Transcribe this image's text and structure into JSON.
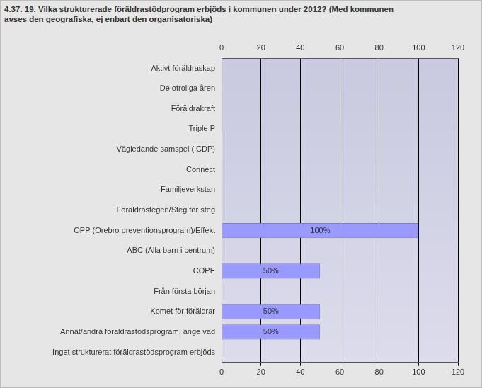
{
  "chart_data": {
    "type": "bar",
    "title": "4.37. 19. Vilka strukturerade föräldrastödprogram erbjöds i kommunen under 2012? (Med kommunen avses den geografiska, ej enbart den organisatoriska)",
    "orientation": "horizontal",
    "categories": [
      "Aktivt föräldraskap",
      "De otroliga åren",
      "Föräldrakraft",
      "Triple P",
      "Vägledande samspel (ICDP)",
      "Connect",
      "Familjeverkstan",
      "Föräldrastegen/Steg för steg",
      "ÖPP (Örebro preventionsprogram)/Effekt",
      "ABC (Alla barn i centrum)",
      "COPE",
      "Från första början",
      "Komet för föräldrar",
      "Annat/andra föräldrastödsprogram, ange vad",
      "Inget strukturerat föräldrastödsprogram erbjöds"
    ],
    "values": [
      0,
      0,
      0,
      0,
      0,
      0,
      0,
      0,
      100,
      0,
      50,
      0,
      50,
      50,
      0
    ],
    "value_labels": [
      null,
      null,
      null,
      null,
      null,
      null,
      null,
      null,
      "100%",
      null,
      "50%",
      null,
      "50%",
      "50%",
      null
    ],
    "color": "#9999ff",
    "xlim": [
      0,
      120
    ],
    "xticks": [
      0,
      20,
      40,
      60,
      80,
      100,
      120
    ],
    "grid": true,
    "data_labels": true
  }
}
